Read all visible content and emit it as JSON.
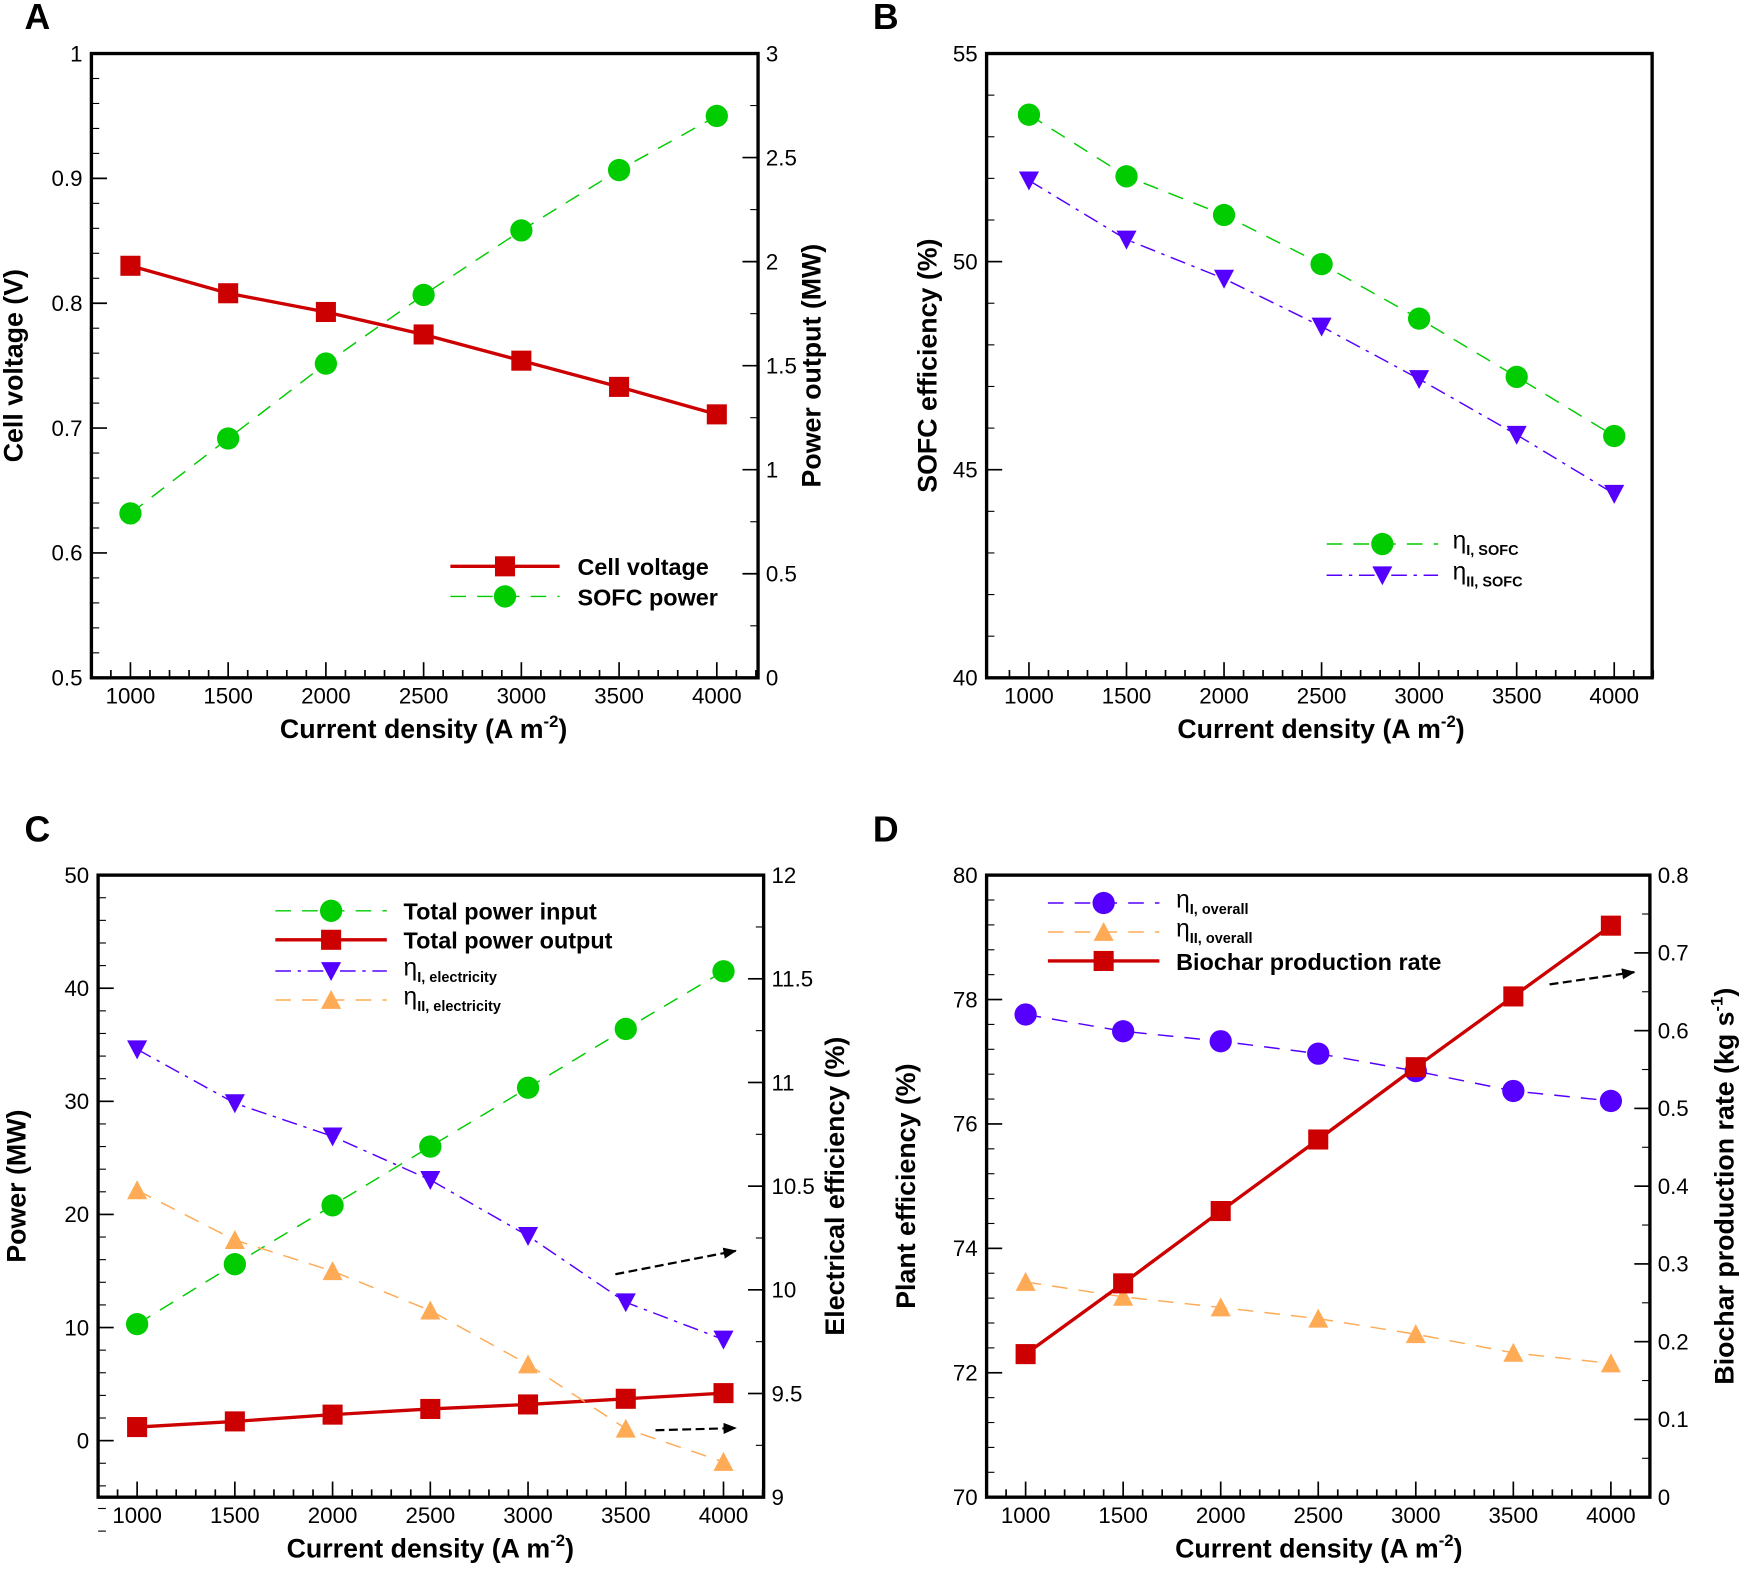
{
  "chart_data": [
    {
      "panel": "A",
      "type": "line",
      "xlabel": {
        "main": "Current density (A m",
        "sup": "-2",
        "end": ")"
      },
      "ylabel": "Cell voltage (V)",
      "y2label": "Power output (MW)",
      "x": [
        1000,
        1500,
        2000,
        2500,
        3000,
        3500,
        4000
      ],
      "xlim": [
        900,
        4200
      ],
      "xticks": [
        "1000",
        "1500",
        "2000",
        "2500",
        "3000",
        "3500",
        "4000"
      ],
      "ylim": [
        0.5,
        1.0
      ],
      "yticks": [
        "0.5",
        "0.6",
        "0.7",
        "0.8",
        "0.9",
        "1"
      ],
      "y2lim": [
        0,
        3
      ],
      "y2ticks": [
        "0",
        "0.5",
        "1",
        "1.5",
        "2",
        "2.5",
        "3"
      ],
      "series": [
        {
          "name": "Cell voltage",
          "axis": "left",
          "marker": "square",
          "line": "solid",
          "color": "#cc0000",
          "values": [
            0.83,
            0.808,
            0.793,
            0.775,
            0.754,
            0.733,
            0.711
          ]
        },
        {
          "name": "SOFC power",
          "axis": "right",
          "marker": "circle",
          "line": "dashed",
          "color": "#00cc00",
          "values": [
            0.79,
            1.15,
            1.51,
            1.84,
            2.15,
            2.44,
            2.7
          ]
        }
      ],
      "legend_position": "bottom-right"
    },
    {
      "panel": "B",
      "type": "line",
      "xlabel": {
        "main": "Current density (A m",
        "sup": "-2",
        "end": ")"
      },
      "ylabel": "SOFC efficiency (%)",
      "x": [
        1000,
        1500,
        2000,
        2500,
        3000,
        3500,
        4000
      ],
      "xlim": [
        900,
        4200
      ],
      "xticks": [
        "1000",
        "1500",
        "2000",
        "2500",
        "3000",
        "3500",
        "4000"
      ],
      "ylim": [
        40,
        55
      ],
      "yticks": [
        "40",
        "45",
        "50",
        "55"
      ],
      "series": [
        {
          "name": "η",
          "sub": "I, SOFC",
          "axis": "left",
          "marker": "circle",
          "line": "dashed",
          "color": "#00cc00",
          "values": [
            53.53,
            52.05,
            51.12,
            49.94,
            48.63,
            47.23,
            45.81
          ]
        },
        {
          "name": "η",
          "sub": "II, SOFC",
          "axis": "left",
          "marker": "triangle-down",
          "line": "dashdot",
          "color": "#5500ff",
          "values": [
            51.95,
            50.53,
            49.59,
            48.44,
            47.18,
            45.84,
            44.42
          ]
        }
      ],
      "legend_position": "bottom-center"
    },
    {
      "panel": "C",
      "type": "line",
      "xlabel": {
        "main": "Current density (A m",
        "sup": "-2",
        "end": ")"
      },
      "ylabel": "Power (MW)",
      "y2label": "Electrical efficiency (%)",
      "x": [
        1000,
        1500,
        2000,
        2500,
        3000,
        3500,
        4000
      ],
      "xlim": [
        900,
        4200
      ],
      "xticks": [
        "1000",
        "1500",
        "2000",
        "2500",
        "3000",
        "3500",
        "4000"
      ],
      "ylim": [
        -5,
        50
      ],
      "yticks": [
        "0",
        "10",
        "20",
        "30",
        "40",
        "50"
      ],
      "y2lim": [
        9,
        12
      ],
      "y2ticks": [
        "9",
        "9.5",
        "10",
        "10.5",
        "11",
        "11.5",
        "12"
      ],
      "series": [
        {
          "name": "Total power input",
          "axis": "left",
          "marker": "circle",
          "line": "dashed",
          "color": "#00cc00",
          "values": [
            10.3,
            15.6,
            20.8,
            26.0,
            31.2,
            36.4,
            41.5
          ]
        },
        {
          "name": "Total power output",
          "axis": "left",
          "marker": "square",
          "line": "solid",
          "color": "#cc0000",
          "values": [
            1.2,
            1.7,
            2.3,
            2.8,
            3.2,
            3.7,
            4.2
          ]
        },
        {
          "name": "η",
          "sub": "I, electricity",
          "axis": "right",
          "marker": "triangle-down",
          "line": "dashdot",
          "color": "#5500ff",
          "values": [
            11.16,
            10.9,
            10.74,
            10.53,
            10.26,
            9.94,
            9.76
          ]
        },
        {
          "name": "η",
          "sub": "II, electricity",
          "axis": "right",
          "marker": "triangle-up",
          "line": "dashed",
          "color": "#ffaa55",
          "values": [
            10.48,
            10.24,
            10.09,
            9.9,
            9.64,
            9.33,
            9.17
          ]
        }
      ],
      "legend_position": "top-center",
      "annotations": [
        "arrow to right axis (η I, electricity)",
        "arrow to right axis (η II, electricity)"
      ]
    },
    {
      "panel": "D",
      "type": "line",
      "xlabel": {
        "main": "Current density (A m",
        "sup": "-2",
        "end": ")"
      },
      "ylabel": "Plant efficiency (%)",
      "y2label": {
        "main": "Biochar production rate (kg s",
        "sup": "-1",
        "end": ")"
      },
      "x": [
        1000,
        1500,
        2000,
        2500,
        3000,
        3500,
        4000
      ],
      "xlim": [
        900,
        4200
      ],
      "xticks": [
        "1000",
        "1500",
        "2000",
        "2500",
        "3000",
        "3500",
        "4000"
      ],
      "ylim": [
        70,
        80
      ],
      "yticks": [
        "70",
        "72",
        "74",
        "76",
        "78",
        "80"
      ],
      "y2lim": [
        0,
        0.8
      ],
      "y2ticks": [
        "0",
        "0.1",
        "0.2",
        "0.3",
        "0.4",
        "0.5",
        "0.6",
        "0.7",
        "0.8"
      ],
      "series": [
        {
          "name": "η",
          "sub": "I, overall",
          "axis": "left",
          "marker": "circle",
          "line": "dashed",
          "color": "#5500ff",
          "values": [
            77.76,
            77.49,
            77.33,
            77.13,
            76.85,
            76.53,
            76.37
          ]
        },
        {
          "name": "η",
          "sub": "II, overall",
          "axis": "left",
          "marker": "triangle-up",
          "line": "dashed",
          "color": "#ffaa55",
          "values": [
            73.46,
            73.22,
            73.05,
            72.87,
            72.62,
            72.32,
            72.15
          ]
        },
        {
          "name": "Biochar production rate",
          "axis": "right",
          "marker": "square",
          "line": "solid",
          "color": "#cc0000",
          "values": [
            0.184,
            0.275,
            0.368,
            0.46,
            0.553,
            0.644,
            0.735
          ]
        }
      ],
      "legend_position": "top-left",
      "annotations": [
        "arrow to right axis (Biochar production rate)"
      ]
    }
  ]
}
